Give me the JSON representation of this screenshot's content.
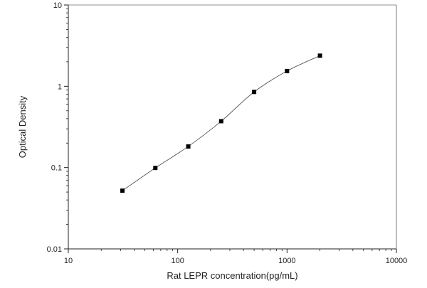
{
  "chart_data": {
    "type": "scatter",
    "title": "",
    "xlabel": "Rat LEPR concentration(pg/mL)",
    "ylabel": "Optical Density",
    "x_scale": "log",
    "y_scale": "log",
    "xlim": [
      10,
      10000
    ],
    "ylim": [
      0.01,
      10
    ],
    "x_ticks": [
      {
        "value": 10,
        "label": "10"
      },
      {
        "value": 100,
        "label": "100"
      },
      {
        "value": 1000,
        "label": "1000"
      },
      {
        "value": 10000,
        "label": "10000"
      }
    ],
    "y_ticks": [
      {
        "value": 0.01,
        "label": "0.01"
      },
      {
        "value": 0.1,
        "label": "0.1"
      },
      {
        "value": 1,
        "label": "1"
      },
      {
        "value": 10,
        "label": "10"
      }
    ],
    "grid": false,
    "legend": "none",
    "series": [
      {
        "x": [
          31.25,
          62.5,
          125,
          250,
          500,
          1000,
          2000
        ],
        "y": [
          0.052,
          0.099,
          0.182,
          0.372,
          0.852,
          1.54,
          2.38
        ],
        "marker": "square",
        "color": "#000000",
        "fit_curve": true
      }
    ]
  }
}
